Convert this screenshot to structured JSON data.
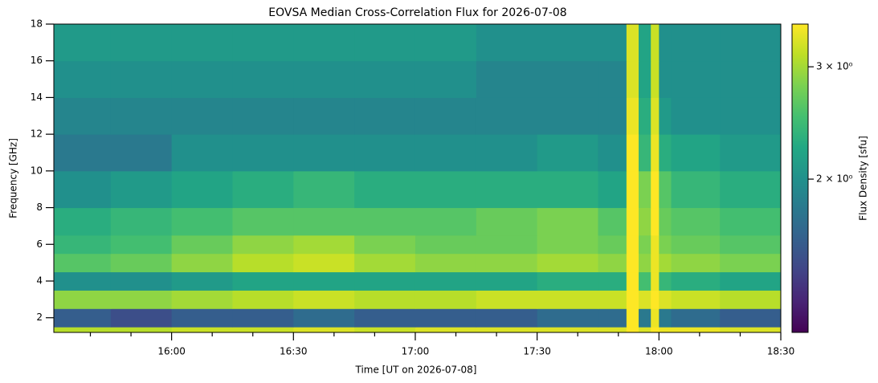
{
  "chart_data": {
    "type": "heatmap",
    "title": "EOVSA Median Cross-Correlation Flux for 2026-07-08",
    "xlabel": "Time [UT on 2026-07-08]",
    "ylabel": "Frequency [GHz]",
    "colorbar_label": "Flux Density [sfu]",
    "colormap": "viridis",
    "color_scale": "log",
    "xlim": [
      "15:31",
      "18:30"
    ],
    "xticks": [
      "16:00",
      "16:30",
      "17:00",
      "17:30",
      "18:00",
      "18:30"
    ],
    "xminorticks": [
      "15:40",
      "15:50",
      "16:10",
      "16:20",
      "16:40",
      "16:50",
      "17:10",
      "17:20",
      "17:40",
      "17:50",
      "18:10",
      "18:20"
    ],
    "ylim": [
      1.2,
      18
    ],
    "yticks": [
      2,
      4,
      6,
      8,
      10,
      12,
      14,
      16,
      18
    ],
    "clim": [
      1.15,
      3.5
    ],
    "cticks": [
      {
        "value": 2,
        "label": "2 × 10⁰"
      },
      {
        "value": 3,
        "label": "3 × 10⁰"
      }
    ],
    "x": [
      "15:31",
      "15:45",
      "16:00",
      "16:15",
      "16:30",
      "16:45",
      "17:00",
      "17:15",
      "17:30",
      "17:45",
      "17:52",
      "17:55",
      "17:58",
      "18:00",
      "18:03",
      "18:15",
      "18:30"
    ],
    "y": [
      1.2,
      1.5,
      2.5,
      3.5,
      4.5,
      5.5,
      6.5,
      8,
      10,
      12,
      14,
      16,
      18
    ],
    "values": [
      [
        3.1,
        3.1,
        3.2,
        3.2,
        3.3,
        3.2,
        3.3,
        3.3,
        3.3,
        3.3,
        3.5,
        3.3,
        3.5,
        3.4,
        3.4,
        3.3
      ],
      [
        1.6,
        1.5,
        1.6,
        1.6,
        1.7,
        1.6,
        1.6,
        1.6,
        1.7,
        1.7,
        3.5,
        1.8,
        3.4,
        1.8,
        1.7,
        1.6
      ],
      [
        2.9,
        2.9,
        3.0,
        3.1,
        3.2,
        3.1,
        3.1,
        3.2,
        3.2,
        3.2,
        3.5,
        3.3,
        3.5,
        3.3,
        3.2,
        3.1
      ],
      [
        2.0,
        2.0,
        2.1,
        2.2,
        2.2,
        2.2,
        2.2,
        2.2,
        2.3,
        2.3,
        3.5,
        2.5,
        3.4,
        2.4,
        2.3,
        2.2
      ],
      [
        2.6,
        2.7,
        2.9,
        3.1,
        3.2,
        3.0,
        2.9,
        2.9,
        3.0,
        2.9,
        3.5,
        2.9,
        3.4,
        3.0,
        2.9,
        2.8
      ],
      [
        2.4,
        2.5,
        2.7,
        2.9,
        3.0,
        2.8,
        2.7,
        2.7,
        2.8,
        2.7,
        3.5,
        2.8,
        3.4,
        2.8,
        2.7,
        2.6
      ],
      [
        2.3,
        2.4,
        2.5,
        2.6,
        2.6,
        2.6,
        2.6,
        2.7,
        2.8,
        2.6,
        3.5,
        2.9,
        3.5,
        2.7,
        2.6,
        2.5
      ],
      [
        2.0,
        2.1,
        2.2,
        2.3,
        2.4,
        2.3,
        2.3,
        2.3,
        2.3,
        2.2,
        3.5,
        2.8,
        3.5,
        2.6,
        2.4,
        2.3
      ],
      [
        1.8,
        1.8,
        2.0,
        2.0,
        2.0,
        2.0,
        2.0,
        2.0,
        2.1,
        2.0,
        3.5,
        2.4,
        3.4,
        2.3,
        2.2,
        2.1
      ],
      [
        1.9,
        1.9,
        1.9,
        1.9,
        1.9,
        1.9,
        1.9,
        1.9,
        1.9,
        1.9,
        3.4,
        2.3,
        3.3,
        2.1,
        2.0,
        2.0
      ],
      [
        2.0,
        2.0,
        2.0,
        2.0,
        2.0,
        2.0,
        2.0,
        1.9,
        1.9,
        1.9,
        3.3,
        2.2,
        3.2,
        2.0,
        2.0,
        2.0
      ],
      [
        2.1,
        2.1,
        2.1,
        2.1,
        2.1,
        2.1,
        2.1,
        2.0,
        2.0,
        2.0,
        3.3,
        2.2,
        3.2,
        2.0,
        2.0,
        2.0
      ]
    ]
  }
}
